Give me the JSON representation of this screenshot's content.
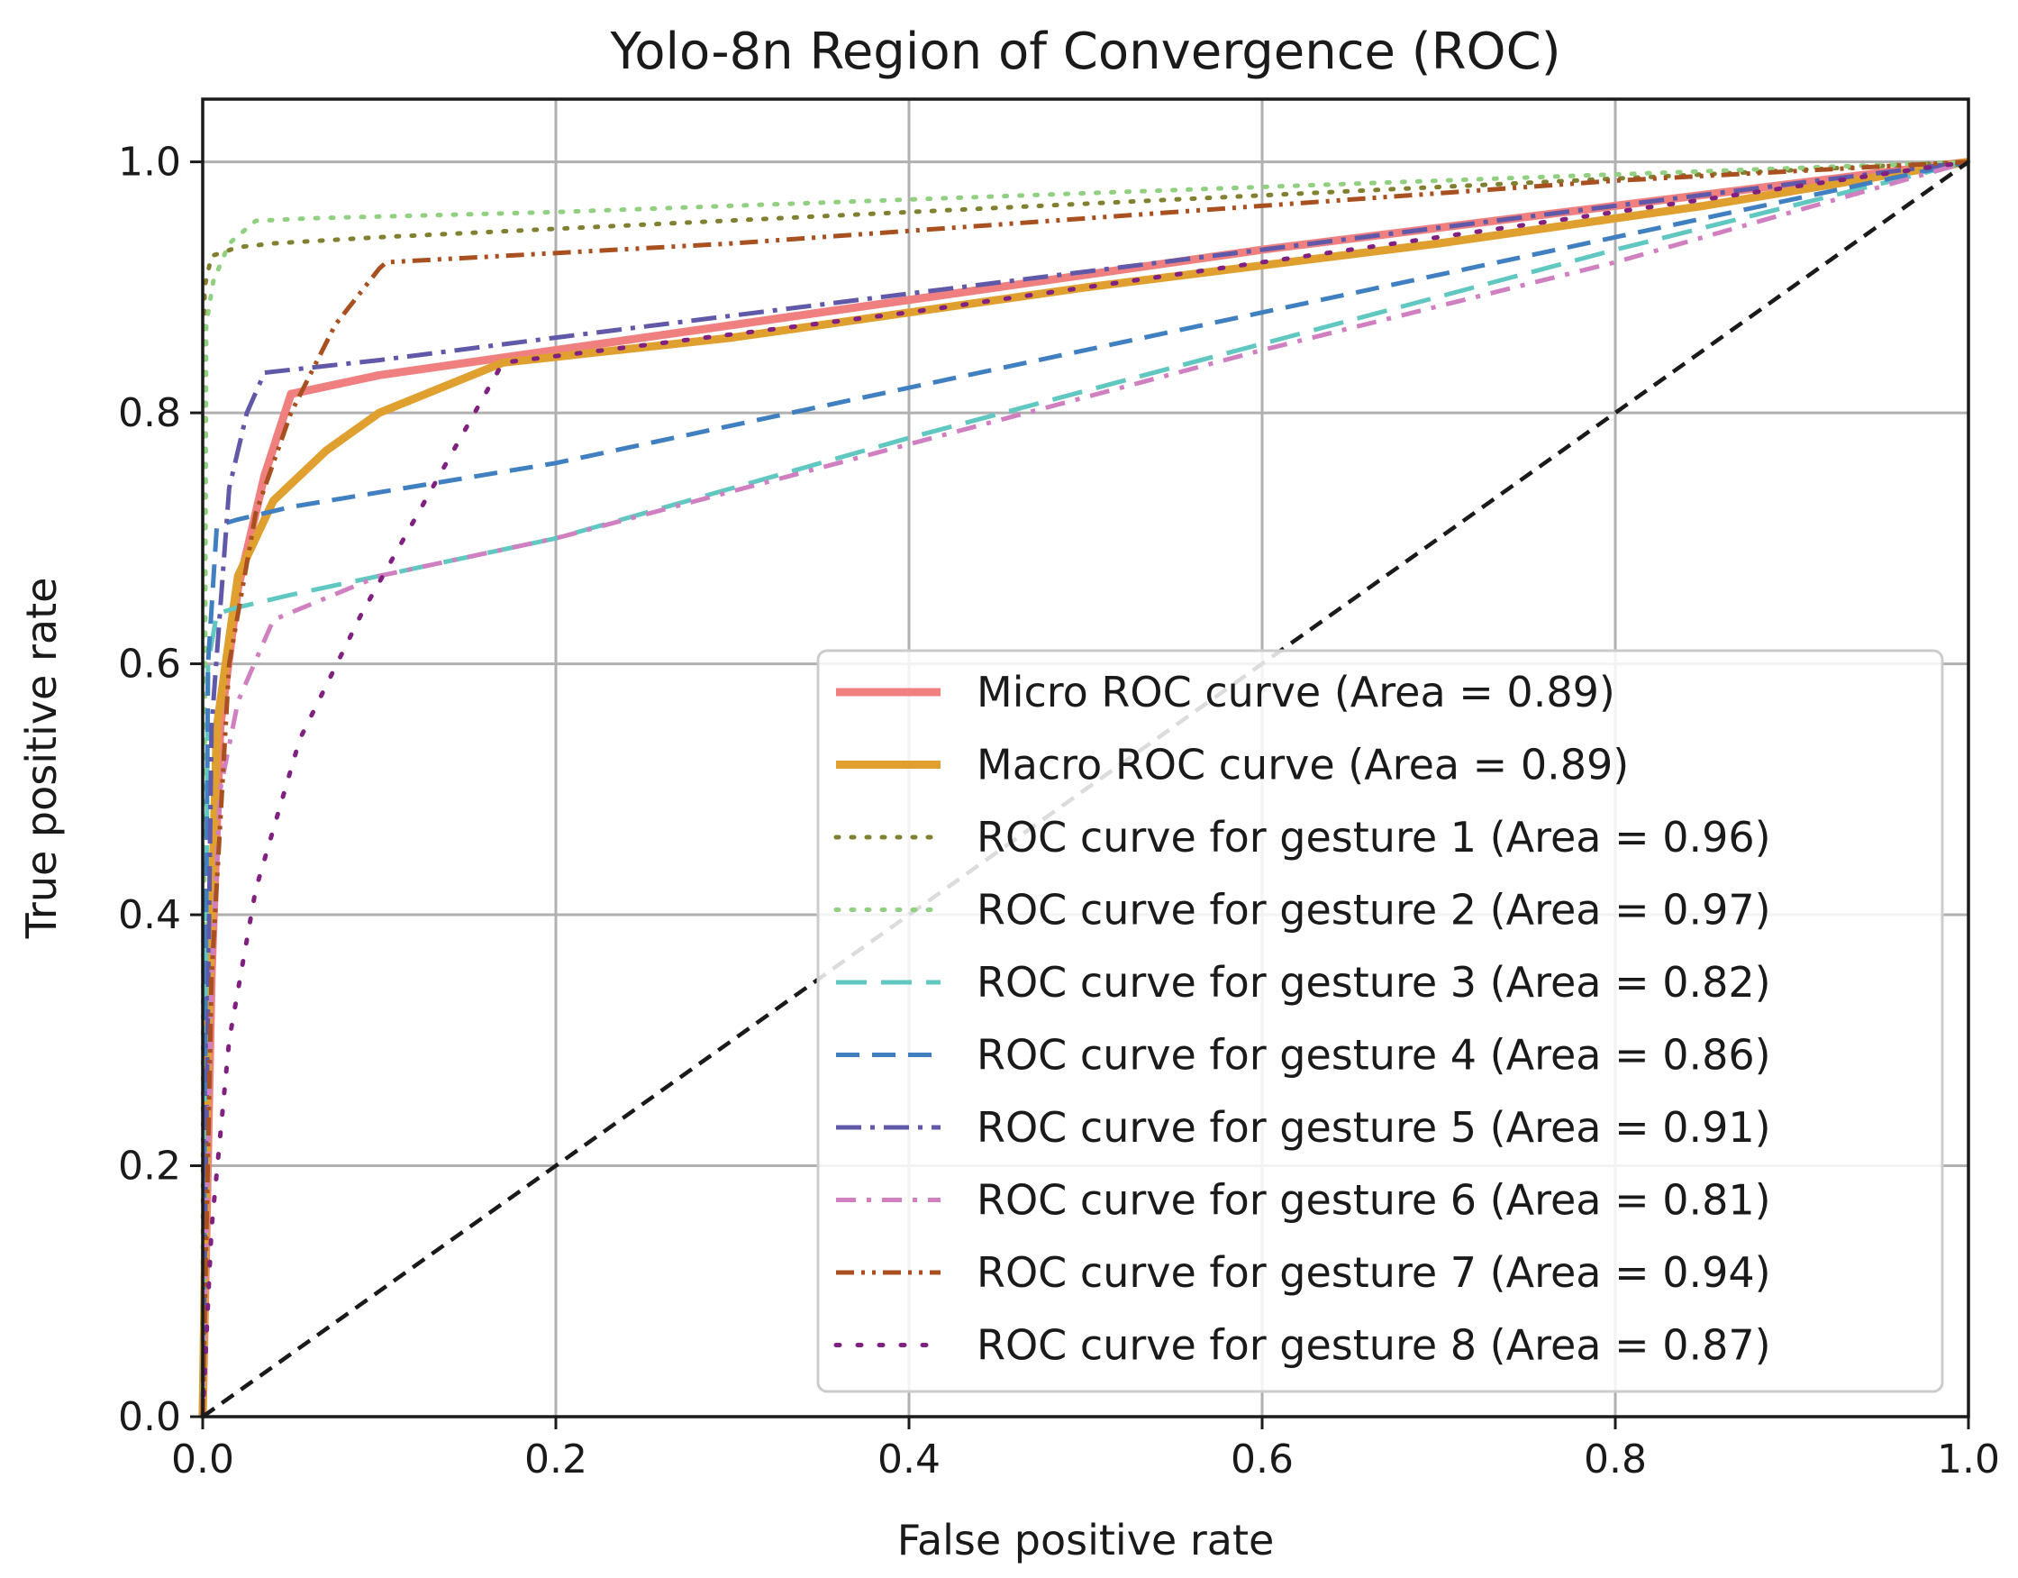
{
  "chart_data": {
    "type": "line",
    "title": "Yolo-8n Region of Convergence (ROC)",
    "xlabel": "False positive rate",
    "ylabel": "True positive rate",
    "xlim": [
      0.0,
      1.0
    ],
    "ylim": [
      0.0,
      1.05
    ],
    "xticks": [
      "0.0",
      "0.2",
      "0.4",
      "0.6",
      "0.8",
      "1.0"
    ],
    "yticks": [
      "0.0",
      "0.2",
      "0.4",
      "0.6",
      "0.8",
      "1.0"
    ],
    "grid": true,
    "legend_position": "lower-right",
    "series": [
      {
        "name": "Micro ROC curve (Area = 0.89)",
        "color": "#f08080",
        "style": "solid-thick",
        "x": [
          0.0,
          0.005,
          0.01,
          0.02,
          0.035,
          0.05,
          0.1,
          0.2,
          0.4,
          0.6,
          0.8,
          1.0
        ],
        "y": [
          0.0,
          0.35,
          0.55,
          0.66,
          0.75,
          0.815,
          0.83,
          0.85,
          0.89,
          0.93,
          0.965,
          1.0
        ]
      },
      {
        "name": "Macro ROC curve (Area = 0.89)",
        "color": "#e0a030",
        "style": "solid-thick",
        "x": [
          0.0,
          0.003,
          0.008,
          0.02,
          0.04,
          0.07,
          0.1,
          0.17,
          0.3,
          0.5,
          0.7,
          0.85,
          1.0
        ],
        "y": [
          0.0,
          0.3,
          0.55,
          0.67,
          0.73,
          0.77,
          0.8,
          0.84,
          0.86,
          0.9,
          0.935,
          0.965,
          1.0
        ]
      },
      {
        "name": "ROC curve for gesture 1 (Area = 0.96)",
        "color": "#808030",
        "style": "dotted",
        "x": [
          0.0,
          0.001,
          0.005,
          0.02,
          0.04,
          0.1,
          0.4,
          0.7,
          1.0
        ],
        "y": [
          0.0,
          0.9,
          0.925,
          0.932,
          0.935,
          0.94,
          0.96,
          0.98,
          1.0
        ]
      },
      {
        "name": "ROC curve for gesture 2 (Area = 0.97)",
        "color": "#90d080",
        "style": "dotted",
        "x": [
          0.0,
          0.002,
          0.006,
          0.015,
          0.03,
          0.06,
          0.2,
          0.5,
          0.8,
          1.0
        ],
        "y": [
          0.0,
          0.87,
          0.905,
          0.935,
          0.953,
          0.955,
          0.96,
          0.975,
          0.99,
          1.0
        ]
      },
      {
        "name": "ROC curve for gesture 3 (Area = 0.82)",
        "color": "#60c8c0",
        "style": "dashed-long",
        "x": [
          0.0,
          0.003,
          0.008,
          0.02,
          0.05,
          0.1,
          0.2,
          0.4,
          0.6,
          0.8,
          1.0
        ],
        "y": [
          0.0,
          0.6,
          0.64,
          0.645,
          0.655,
          0.67,
          0.7,
          0.78,
          0.855,
          0.93,
          1.0
        ]
      },
      {
        "name": "ROC curve for gesture 4 (Area = 0.86)",
        "color": "#4080c0",
        "style": "dashed",
        "x": [
          0.0,
          0.003,
          0.008,
          0.02,
          0.05,
          0.2,
          0.4,
          0.6,
          0.8,
          1.0
        ],
        "y": [
          0.0,
          0.6,
          0.71,
          0.715,
          0.725,
          0.76,
          0.82,
          0.88,
          0.94,
          1.0
        ]
      },
      {
        "name": "ROC curve for gesture 5 (Area = 0.91)",
        "color": "#6058a8",
        "style": "dash-dot-long",
        "x": [
          0.0,
          0.005,
          0.015,
          0.025,
          0.035,
          0.1,
          0.2,
          0.4,
          0.6,
          0.8,
          1.0
        ],
        "y": [
          0.0,
          0.55,
          0.74,
          0.8,
          0.832,
          0.842,
          0.86,
          0.895,
          0.93,
          0.965,
          1.0
        ]
      },
      {
        "name": "ROC curve for gesture 6 (Area = 0.81)",
        "color": "#d080c0",
        "style": "dash-dot",
        "x": [
          0.0,
          0.005,
          0.01,
          0.02,
          0.04,
          0.1,
          0.2,
          0.4,
          0.6,
          0.8,
          1.0
        ],
        "y": [
          0.0,
          0.35,
          0.5,
          0.57,
          0.635,
          0.67,
          0.7,
          0.775,
          0.85,
          0.92,
          1.0
        ]
      },
      {
        "name": "ROC curve for gesture 7 (Area = 0.94)",
        "color": "#a85020",
        "style": "dash-dot-dot",
        "x": [
          0.0,
          0.005,
          0.015,
          0.03,
          0.05,
          0.075,
          0.1,
          0.104,
          0.3,
          0.6,
          0.8,
          1.0
        ],
        "y": [
          0.0,
          0.35,
          0.6,
          0.72,
          0.8,
          0.87,
          0.915,
          0.92,
          0.935,
          0.965,
          0.985,
          1.0
        ]
      },
      {
        "name": "ROC curve for gesture 8 (Area = 0.87)",
        "color": "#802080",
        "style": "dotted-loose",
        "x": [
          0.0,
          0.005,
          0.015,
          0.03,
          0.055,
          0.09,
          0.13,
          0.17,
          0.4,
          0.6,
          0.8,
          1.0
        ],
        "y": [
          0.0,
          0.15,
          0.3,
          0.42,
          0.54,
          0.64,
          0.74,
          0.84,
          0.88,
          0.92,
          0.96,
          1.0
        ]
      }
    ],
    "reference_line": {
      "color": "#1a1a1a",
      "style": "dashed",
      "x": [
        0.0,
        1.0
      ],
      "y": [
        0.0,
        1.0
      ]
    }
  }
}
